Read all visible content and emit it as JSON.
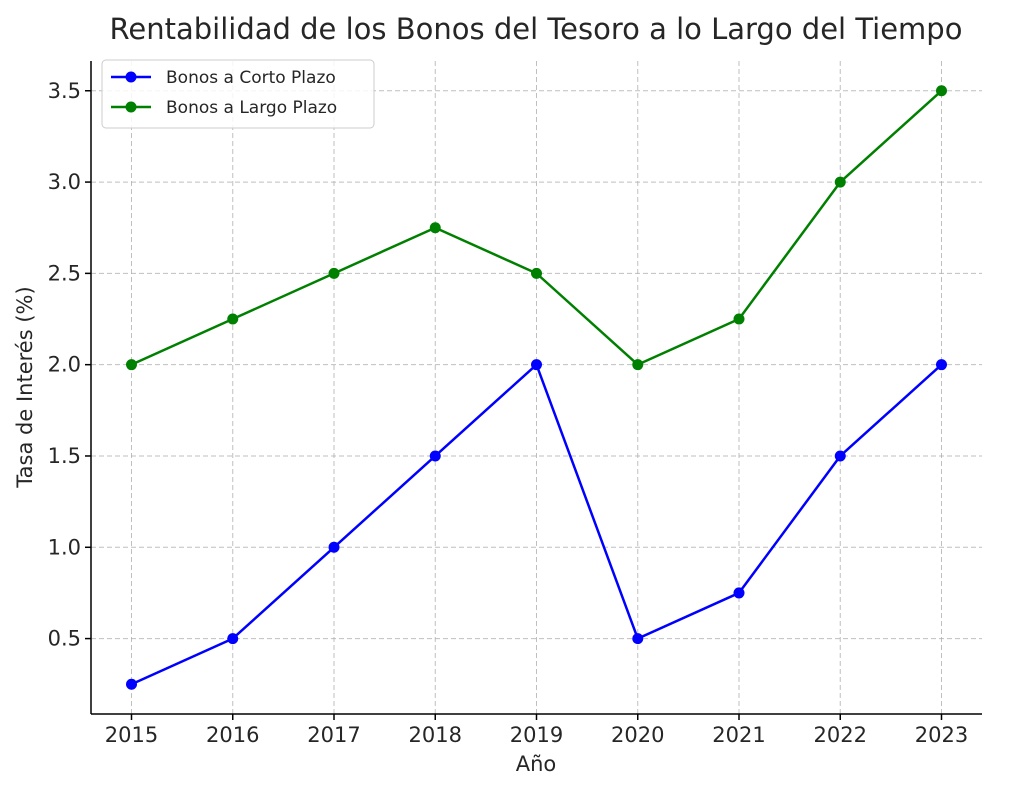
{
  "chart_data": {
    "type": "line",
    "title": "Rentabilidad de los Bonos del Tesoro a lo Largo del Tiempo",
    "xlabel": "Año",
    "ylabel": "Tasa de Interés (%)",
    "x": [
      2015,
      2016,
      2017,
      2018,
      2019,
      2020,
      2021,
      2022,
      2023
    ],
    "x_tick_labels": [
      "2015",
      "2016",
      "2017",
      "2018",
      "2019",
      "2020",
      "2021",
      "2022",
      "2023"
    ],
    "y_ticks": [
      0.5,
      1.0,
      1.5,
      2.0,
      2.5,
      3.0,
      3.5
    ],
    "y_tick_labels": [
      "0.5",
      "1.0",
      "1.5",
      "2.0",
      "2.5",
      "3.0",
      "3.5"
    ],
    "xlim": [
      2014.6,
      2023.4
    ],
    "ylim": [
      0.087,
      3.663
    ],
    "grid": true,
    "legend_position": "top-left",
    "series": [
      {
        "name": "Bonos a Corto Plazo",
        "color": "#0000ff",
        "marker": "circle",
        "values": [
          0.25,
          0.5,
          1.0,
          1.5,
          2.0,
          0.5,
          0.75,
          1.5,
          2.0
        ]
      },
      {
        "name": "Bonos a Largo Plazo",
        "color": "#008000",
        "marker": "circle",
        "values": [
          2.0,
          2.25,
          2.5,
          2.75,
          2.5,
          2.0,
          2.25,
          3.0,
          3.5
        ]
      }
    ]
  }
}
